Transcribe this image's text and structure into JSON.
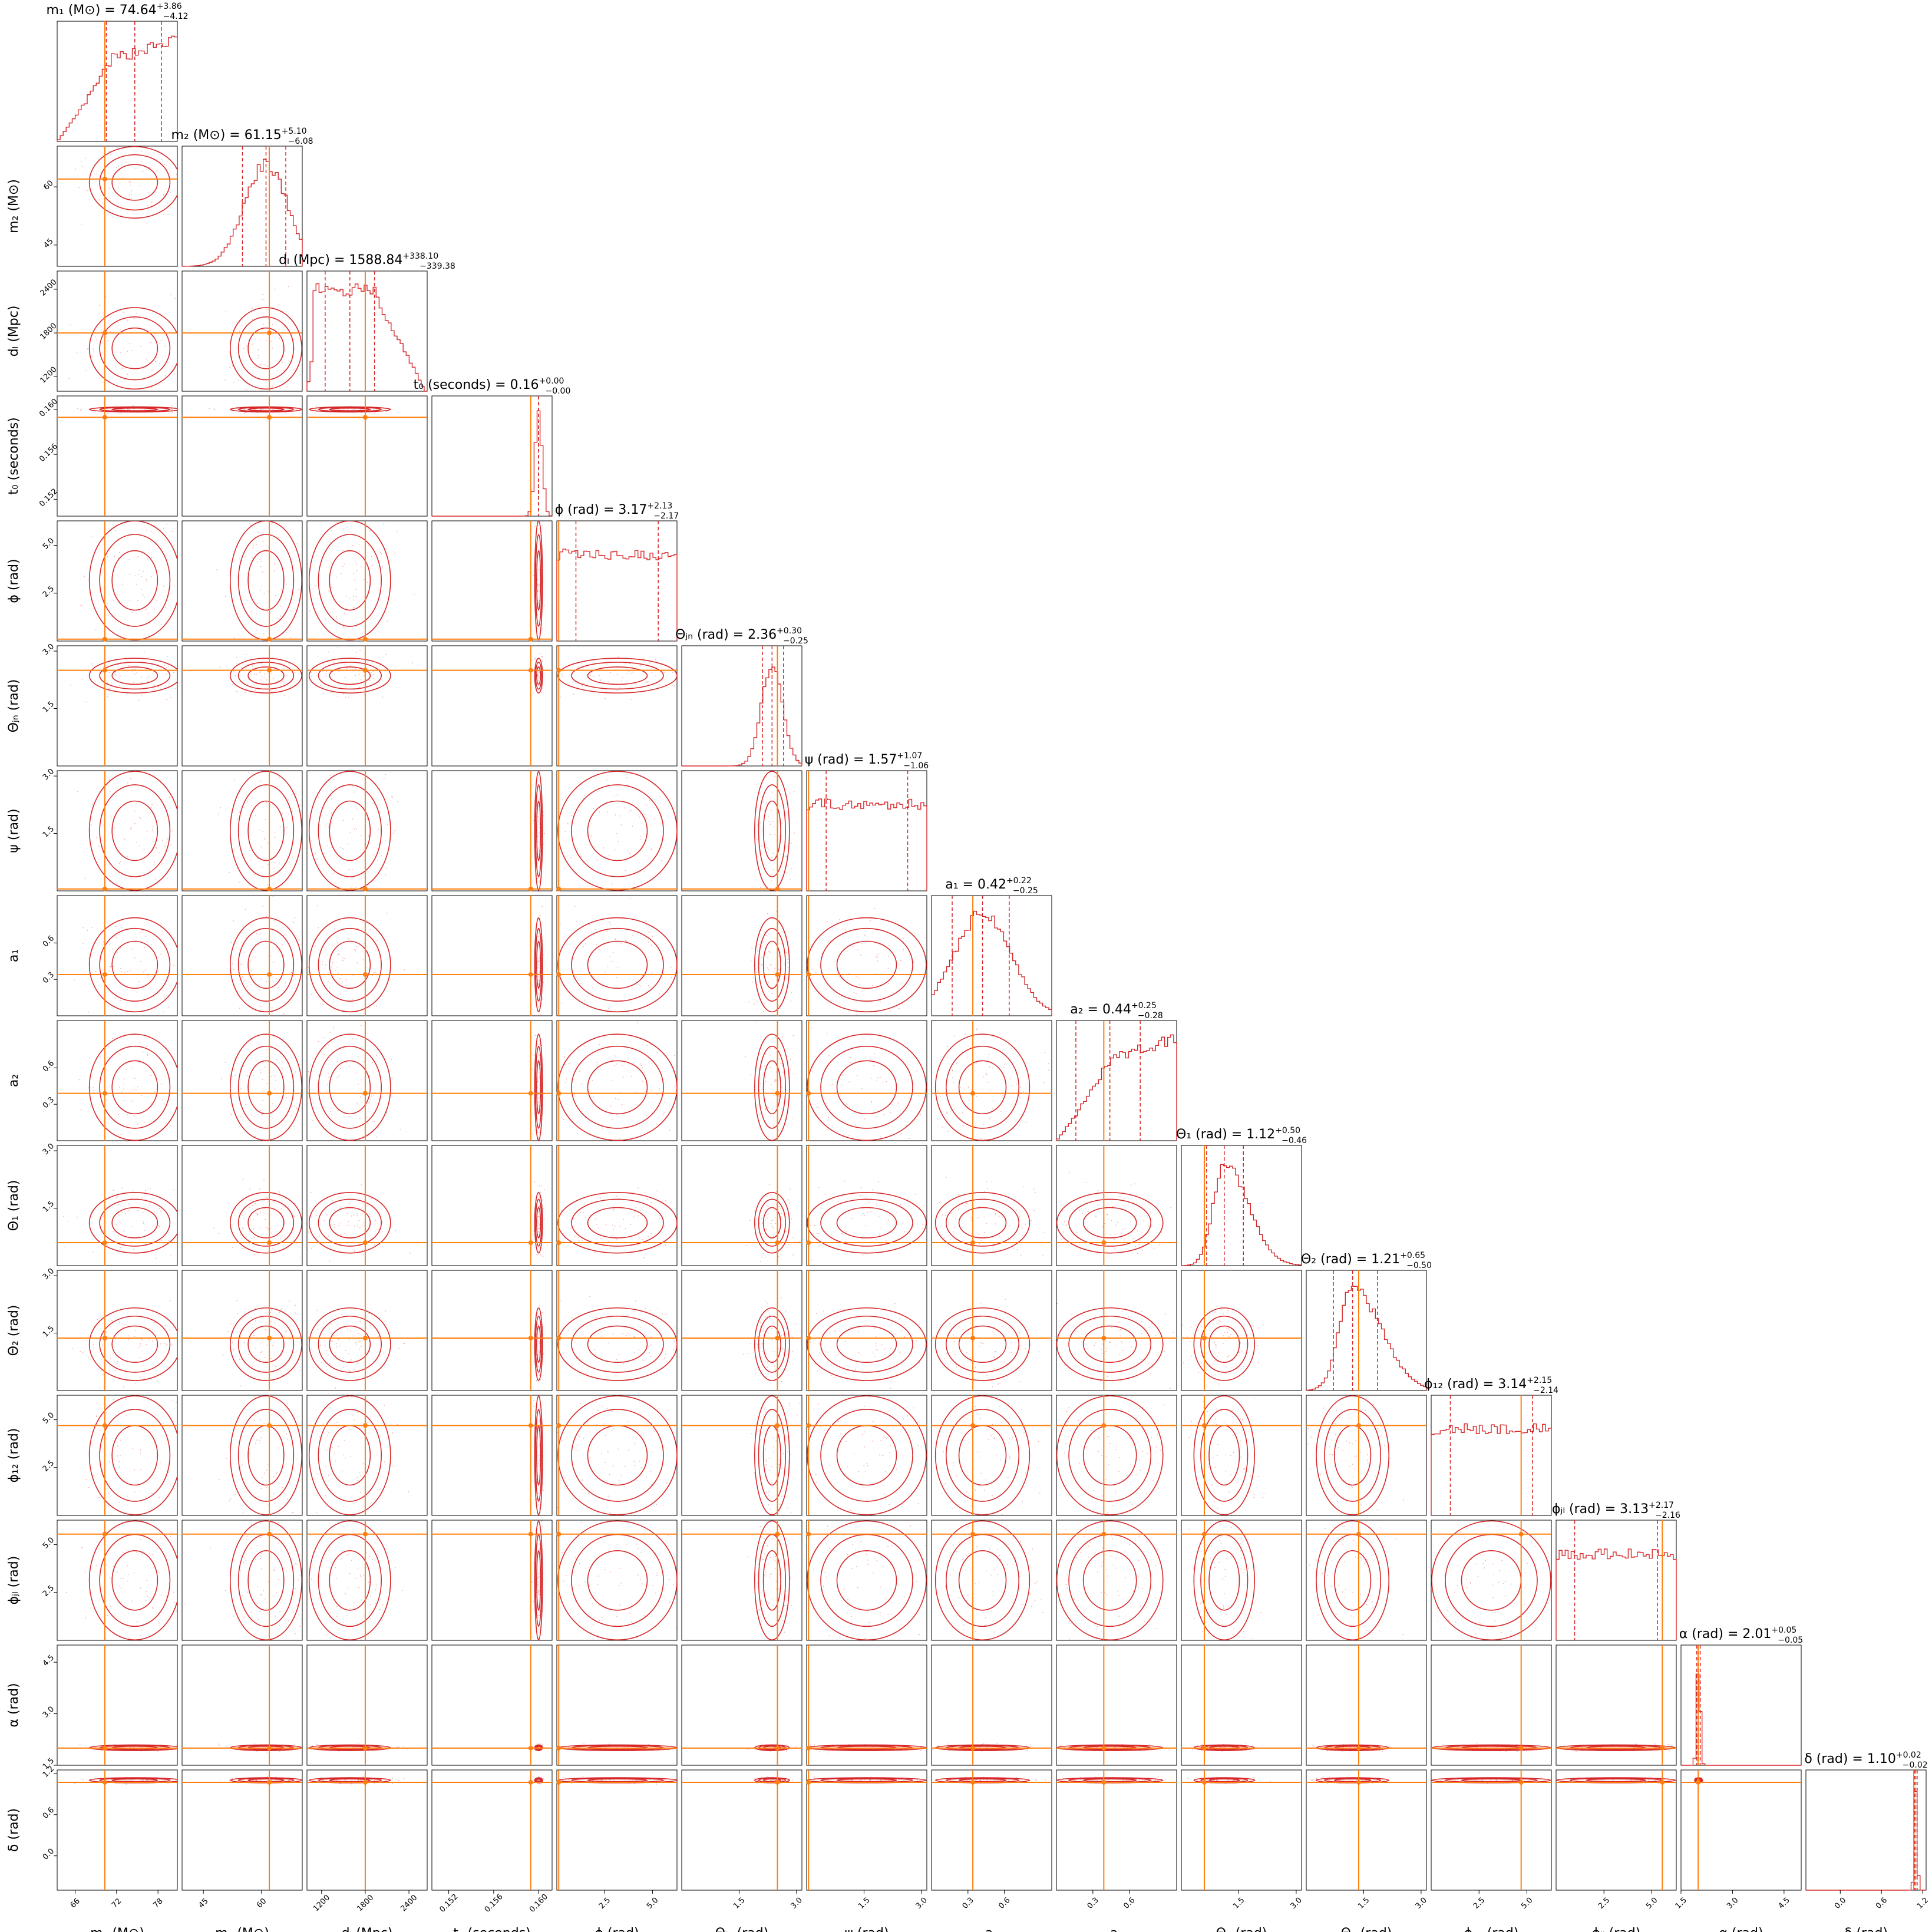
{
  "colors": {
    "posterior": "#d62728",
    "truth": "#ff7f0e",
    "frame": "#000000",
    "background": "#ffffff"
  },
  "chart_data": {
    "type": "corner",
    "params": [
      {
        "key": "m1",
        "label": "m₁ (M⊙)",
        "title": "m₁ (M⊙) = 74.64",
        "median": 74.64,
        "plus": "+3.86",
        "minus": "−4.12",
        "range": [
          63.4,
          80.8
        ],
        "truth": 70.3,
        "ticks": [
          66,
          72,
          78
        ],
        "tick_labels": [
          "66",
          "72",
          "78"
        ],
        "shape": "rising"
      },
      {
        "key": "m2",
        "label": "m₂ (M⊙)",
        "title": "m₂ (M⊙) = 61.15",
        "median": 61.15,
        "plus": "+5.10",
        "minus": "−6.08",
        "range": [
          39.5,
          70.5
        ],
        "truth": 62.0,
        "ticks": [
          45,
          60
        ],
        "tick_labels": [
          "45",
          "60"
        ],
        "shape": "gauss"
      },
      {
        "key": "dL",
        "label": "dₗ (Mpc)",
        "title": "dₗ (Mpc) = 1588.84",
        "median": 1588.84,
        "plus": "+338.10",
        "minus": "−339.38",
        "range": [
          1000,
          2650
        ],
        "truth": 1800,
        "ticks": [
          1200,
          1800,
          2400
        ],
        "tick_labels": [
          "1200",
          "1800",
          "2400"
        ],
        "shape": "plateau"
      },
      {
        "key": "t0",
        "label": "t₀ (seconds)",
        "title": "t₀ (seconds) = 0.16",
        "median": 0.16,
        "plus": "+0.00",
        "minus": "−0.00",
        "range": [
          0.1505,
          0.1612
        ],
        "truth": 0.1593,
        "ticks": [
          0.152,
          0.156,
          0.16
        ],
        "tick_labels": [
          "0.152",
          "0.156",
          "0.160"
        ],
        "shape": "narrow"
      },
      {
        "key": "phi",
        "label": "ϕ (rad)",
        "title": "ϕ (rad) = 3.17",
        "median": 3.17,
        "plus": "+2.13",
        "minus": "−2.17",
        "range": [
          0,
          6.28
        ],
        "truth": 0.1,
        "ticks": [
          2.5,
          5.0
        ],
        "tick_labels": [
          "2.5",
          "5.0"
        ],
        "shape": "flat"
      },
      {
        "key": "theta_jn",
        "label": "Θⱼₙ (rad)",
        "title": "Θⱼₙ (rad) = 2.36",
        "median": 2.36,
        "plus": "+0.30",
        "minus": "−0.25",
        "range": [
          0,
          3.14
        ],
        "truth": 2.5,
        "ticks": [
          1.5,
          3.0
        ],
        "tick_labels": [
          "1.5",
          "3.0"
        ],
        "shape": "narrow"
      },
      {
        "key": "psi",
        "label": "ψ (rad)",
        "title": "ψ (rad) = 1.57",
        "median": 1.57,
        "plus": "+1.07",
        "minus": "−1.06",
        "range": [
          0,
          3.14
        ],
        "truth": 0.05,
        "ticks": [
          1.5,
          3.0
        ],
        "tick_labels": [
          "1.5",
          "3.0"
        ],
        "shape": "flat"
      },
      {
        "key": "a1",
        "label": "a₁",
        "title": "a₁ = 0.42",
        "median": 0.42,
        "plus": "+0.22",
        "minus": "−0.25",
        "range": [
          0,
          0.99
        ],
        "truth": 0.34,
        "ticks": [
          0.3,
          0.6
        ],
        "tick_labels": [
          "0.3",
          "0.6"
        ],
        "shape": "gauss"
      },
      {
        "key": "a2",
        "label": "a₂",
        "title": "a₂ = 0.44",
        "median": 0.44,
        "plus": "+0.25",
        "minus": "−0.28",
        "range": [
          0,
          0.99
        ],
        "truth": 0.39,
        "ticks": [
          0.3,
          0.6
        ],
        "tick_labels": [
          "0.3",
          "0.6"
        ],
        "shape": "rising"
      },
      {
        "key": "theta1",
        "label": "Θ₁ (rad)",
        "title": "Θ₁ (rad) = 1.12",
        "median": 1.12,
        "plus": "+0.50",
        "minus": "−0.46",
        "range": [
          0,
          3.14
        ],
        "truth": 0.6,
        "ticks": [
          1.5,
          3.0
        ],
        "tick_labels": [
          "1.5",
          "3.0"
        ],
        "shape": "skew"
      },
      {
        "key": "theta2",
        "label": "Θ₂ (rad)",
        "title": "Θ₂ (rad) = 1.21",
        "median": 1.21,
        "plus": "+0.65",
        "minus": "−0.50",
        "range": [
          0,
          3.14
        ],
        "truth": 1.37,
        "ticks": [
          1.5,
          3.0
        ],
        "tick_labels": [
          "1.5",
          "3.0"
        ],
        "shape": "skew"
      },
      {
        "key": "phi12",
        "label": "ϕ₁₂ (rad)",
        "title": "ϕ₁₂ (rad) = 3.14",
        "median": 3.14,
        "plus": "+2.15",
        "minus": "−2.14",
        "range": [
          0,
          6.28
        ],
        "truth": 4.7,
        "ticks": [
          2.5,
          5.0
        ],
        "tick_labels": [
          "2.5",
          "5.0"
        ],
        "shape": "flat"
      },
      {
        "key": "phijl",
        "label": "ϕⱼₗ (rad)",
        "title": "ϕⱼₗ (rad) = 3.13",
        "median": 3.13,
        "plus": "+2.17",
        "minus": "−2.16",
        "range": [
          0,
          6.28
        ],
        "truth": 5.55,
        "ticks": [
          2.5,
          5.0
        ],
        "tick_labels": [
          "2.5",
          "5.0"
        ],
        "shape": "flat"
      },
      {
        "key": "alpha",
        "label": "α (rad)",
        "title": "α (rad) = 2.01",
        "median": 2.01,
        "plus": "+0.05",
        "minus": "−0.05",
        "range": [
          1.5,
          5.0
        ],
        "truth": 2.0,
        "ticks": [
          1.5,
          3.0,
          4.5
        ],
        "tick_labels": [
          "1.5",
          "3.0",
          "4.5"
        ],
        "shape": "spike"
      },
      {
        "key": "delta",
        "label": "δ (rad)",
        "title": "δ (rad) = 1.10",
        "median": 1.1,
        "plus": "+0.02",
        "minus": "−0.02",
        "range": [
          -0.5,
          1.25
        ],
        "truth": 1.07,
        "ticks": [
          0.0,
          0.6,
          1.2
        ],
        "tick_labels": [
          "0.0",
          "0.6",
          "1.2"
        ],
        "shape": "spike"
      }
    ]
  }
}
